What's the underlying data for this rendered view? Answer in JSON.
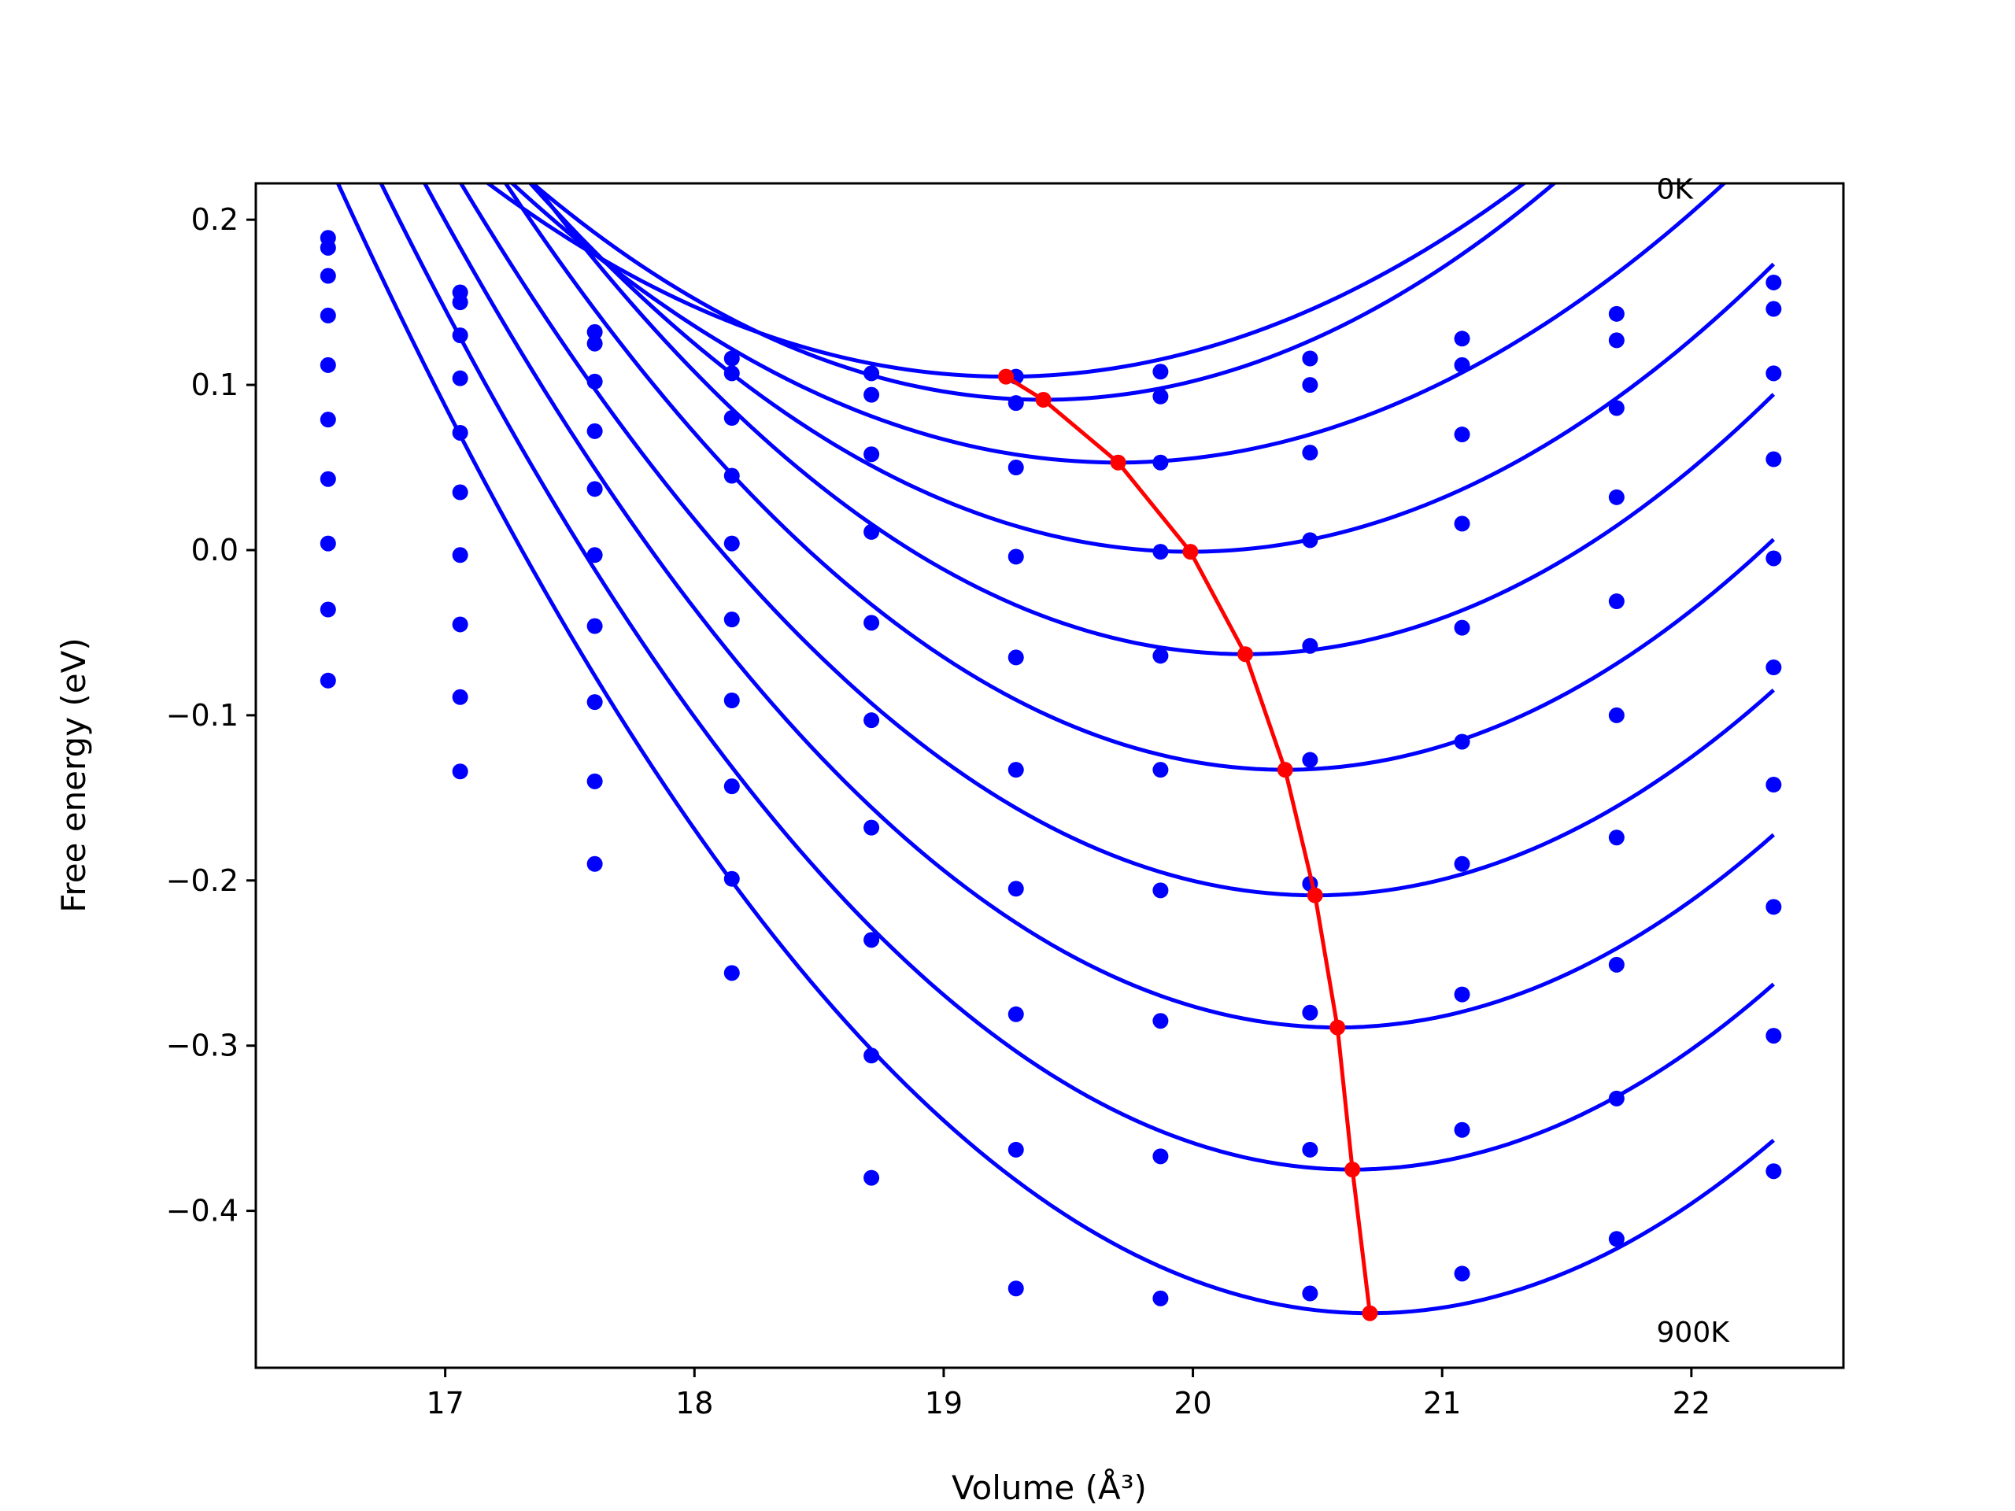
{
  "chart_data": {
    "type": "line",
    "title": "",
    "xlabel": "Volume (Å³)",
    "ylabel": "Free energy (eV)",
    "xlim": [
      16.24,
      22.61
    ],
    "ylim": [
      -0.495,
      0.222
    ],
    "xticks": [
      17,
      18,
      19,
      20,
      21,
      22
    ],
    "xtick_labels": [
      "17",
      "18",
      "19",
      "20",
      "21",
      "22"
    ],
    "yticks": [
      0.2,
      0.1,
      0.0,
      -0.1,
      -0.2,
      -0.3,
      -0.4
    ],
    "ytick_labels": [
      "0.2",
      "0.1",
      "0.0",
      "−0.1",
      "−0.2",
      "−0.3",
      "−0.4"
    ],
    "grid": false,
    "annotations": [
      {
        "text": "0K",
        "x": 21.86,
        "y": 0.219
      },
      {
        "text": "900K",
        "x": 21.86,
        "y": -0.473
      }
    ],
    "curve_color": "#0000ff",
    "points_color": "#0000ff",
    "min_line_color": "#ff0000",
    "x_points": [
      16.53,
      17.06,
      17.6,
      18.15,
      18.71,
      19.29,
      19.87,
      20.47,
      21.08,
      21.7,
      22.33
    ],
    "series": [
      {
        "values": [
          0.189,
          0.156,
          0.132,
          0.116,
          0.107,
          0.105,
          0.108,
          0.116,
          0.128,
          0.143,
          0.162
        ],
        "fit": {
          "v0": 19.25,
          "e0": 0.105,
          "a": 0.0271
        }
      },
      {
        "values": [
          0.183,
          0.15,
          0.125,
          0.107,
          0.094,
          0.089,
          0.093,
          0.1,
          0.112,
          0.127,
          0.146
        ],
        "fit": {
          "v0": 19.4,
          "e0": 0.091,
          "a": 0.0312
        }
      },
      {
        "values": [
          0.166,
          0.13,
          0.102,
          0.08,
          0.058,
          0.05,
          0.053,
          0.059,
          0.07,
          0.086,
          0.107
        ],
        "fit": {
          "v0": 19.7,
          "e0": 0.053,
          "a": 0.0286
        }
      },
      {
        "values": [
          0.142,
          0.104,
          0.072,
          0.045,
          0.011,
          -0.004,
          -0.001,
          0.006,
          0.016,
          0.032,
          0.055
        ],
        "fit": {
          "v0": 19.99,
          "e0": -0.001,
          "a": 0.0318
        }
      },
      {
        "values": [
          0.112,
          0.071,
          0.037,
          0.004,
          -0.044,
          -0.065,
          -0.064,
          -0.058,
          -0.047,
          -0.031,
          -0.005
        ],
        "fit": {
          "v0": 20.21,
          "e0": -0.063,
          "a": 0.035
        }
      },
      {
        "values": [
          0.079,
          0.035,
          -0.003,
          -0.042,
          -0.103,
          -0.133,
          -0.133,
          -0.127,
          -0.116,
          -0.1,
          -0.071
        ],
        "fit": {
          "v0": 20.37,
          "e0": -0.133,
          "a": 0.0363
        }
      },
      {
        "values": [
          0.043,
          -0.003,
          -0.046,
          -0.091,
          -0.168,
          -0.205,
          -0.206,
          -0.202,
          -0.19,
          -0.174,
          -0.142
        ],
        "fit": {
          "v0": 20.49,
          "e0": -0.209,
          "a": 0.0367
        }
      },
      {
        "values": [
          0.004,
          -0.045,
          -0.092,
          -0.143,
          -0.236,
          -0.281,
          -0.285,
          -0.28,
          -0.269,
          -0.251,
          -0.216
        ],
        "fit": {
          "v0": 20.58,
          "e0": -0.289,
          "a": 0.0381
        }
      },
      {
        "values": [
          -0.036,
          -0.089,
          -0.14,
          -0.199,
          -0.306,
          -0.363,
          -0.367,
          -0.363,
          -0.351,
          -0.332,
          -0.294
        ],
        "fit": {
          "v0": 20.64,
          "e0": -0.375,
          "a": 0.0393
        }
      },
      {
        "values": [
          -0.079,
          -0.134,
          -0.19,
          -0.256,
          -0.38,
          -0.447,
          -0.453,
          -0.45,
          -0.438,
          -0.417,
          -0.376
        ],
        "fit": {
          "v0": 20.71,
          "e0": -0.462,
          "a": 0.0399
        }
      }
    ],
    "minimum_line": {
      "x": [
        19.25,
        19.4,
        19.7,
        19.99,
        20.21,
        20.37,
        20.49,
        20.58,
        20.64,
        20.71
      ],
      "y": [
        0.105,
        0.091,
        0.053,
        -0.001,
        -0.063,
        -0.133,
        -0.209,
        -0.289,
        -0.375,
        -0.462
      ]
    },
    "fit_x_range": [
      16.53,
      22.33
    ]
  }
}
